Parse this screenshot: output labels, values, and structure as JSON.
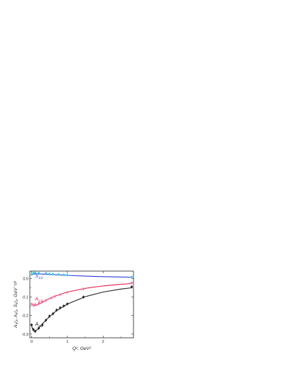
{
  "chart_data": {
    "type": "scatter",
    "title": "",
    "xlabel": "Q², GeV²",
    "ylabel": "A₃/₂, A₁/₂, S₁/₂, GeV⁻¹/²",
    "xlim": [
      -0.05,
      2.85
    ],
    "ylim": [
      -0.32,
      0.04
    ],
    "x_ticks": [
      0,
      1,
      2
    ],
    "x_tick_labels": [
      "0",
      "1",
      "2"
    ],
    "y_ticks": [
      0.0,
      -0.1,
      -0.2,
      -0.3
    ],
    "y_tick_labels": [
      "0.0",
      "-0.1",
      "-0.2",
      "-0.3"
    ],
    "grid": false,
    "series": [
      {
        "name": "S1/2",
        "label_main": "S",
        "label_sub": "1/2",
        "color": "#2a3fd6",
        "marker_color": "#41c8e8",
        "curve": [
          [
            0.0,
            0.021
          ],
          [
            0.05,
            0.024
          ],
          [
            0.1,
            0.025
          ],
          [
            0.2,
            0.025
          ],
          [
            0.3,
            0.024
          ],
          [
            0.5,
            0.022
          ],
          [
            0.7,
            0.02
          ],
          [
            1.0,
            0.017
          ],
          [
            1.5,
            0.013
          ],
          [
            2.0,
            0.01
          ],
          [
            2.5,
            0.008
          ],
          [
            2.8,
            0.007
          ]
        ],
        "points": [
          [
            0.0,
            0.022
          ],
          [
            0.05,
            0.03
          ],
          [
            0.1,
            0.032
          ],
          [
            0.2,
            0.03
          ],
          [
            0.4,
            0.028
          ],
          [
            0.5,
            0.025
          ],
          [
            0.6,
            0.024
          ],
          [
            0.75,
            0.022
          ],
          [
            0.9,
            0.02
          ],
          [
            1.0,
            0.019
          ],
          [
            2.8,
            0.008
          ]
        ]
      },
      {
        "name": "A1/2",
        "label_main": "A",
        "label_sub": "1/2",
        "color": "#e8224e",
        "marker_color": "#f07aa0",
        "curve": [
          [
            0.0,
            -0.132
          ],
          [
            0.05,
            -0.147
          ],
          [
            0.1,
            -0.146
          ],
          [
            0.2,
            -0.139
          ],
          [
            0.3,
            -0.128
          ],
          [
            0.4,
            -0.118
          ],
          [
            0.5,
            -0.108
          ],
          [
            0.7,
            -0.092
          ],
          [
            1.0,
            -0.073
          ],
          [
            1.5,
            -0.053
          ],
          [
            2.0,
            -0.04
          ],
          [
            2.5,
            -0.031
          ],
          [
            2.8,
            -0.027
          ]
        ],
        "points": [
          [
            0.0,
            -0.138
          ],
          [
            0.05,
            -0.145
          ],
          [
            0.1,
            -0.14
          ],
          [
            0.2,
            -0.133
          ],
          [
            0.3,
            -0.126
          ],
          [
            0.4,
            -0.118
          ],
          [
            0.55,
            -0.105
          ],
          [
            0.65,
            -0.097
          ],
          [
            0.8,
            -0.087
          ],
          [
            1.0,
            -0.075
          ],
          [
            1.45,
            -0.056
          ],
          [
            2.8,
            -0.023
          ]
        ]
      },
      {
        "name": "A3/2",
        "label_main": "A",
        "label_sub": "3/2",
        "color": "#222222",
        "marker_color": "#222222",
        "curve": [
          [
            0.0,
            -0.255
          ],
          [
            0.03,
            -0.275
          ],
          [
            0.06,
            -0.283
          ],
          [
            0.1,
            -0.283
          ],
          [
            0.15,
            -0.277
          ],
          [
            0.2,
            -0.267
          ],
          [
            0.3,
            -0.246
          ],
          [
            0.4,
            -0.225
          ],
          [
            0.5,
            -0.206
          ],
          [
            0.7,
            -0.173
          ],
          [
            1.0,
            -0.138
          ],
          [
            1.5,
            -0.098
          ],
          [
            2.0,
            -0.073
          ],
          [
            2.5,
            -0.057
          ],
          [
            2.8,
            -0.05
          ]
        ],
        "points": [
          [
            0.0,
            -0.25
          ],
          [
            0.05,
            -0.275
          ],
          [
            0.1,
            -0.285
          ],
          [
            0.2,
            -0.268
          ],
          [
            0.3,
            -0.25
          ],
          [
            0.4,
            -0.225
          ],
          [
            0.5,
            -0.203
          ],
          [
            0.6,
            -0.19
          ],
          [
            0.7,
            -0.17
          ],
          [
            0.8,
            -0.158
          ],
          [
            0.9,
            -0.148
          ],
          [
            1.0,
            -0.137
          ],
          [
            1.45,
            -0.1
          ],
          [
            2.8,
            -0.045
          ]
        ]
      }
    ],
    "series_label_positions": [
      {
        "x": 0.1,
        "y": 0.005
      },
      {
        "x": 0.1,
        "y": -0.118
      },
      {
        "x": 0.1,
        "y": -0.255
      }
    ]
  }
}
